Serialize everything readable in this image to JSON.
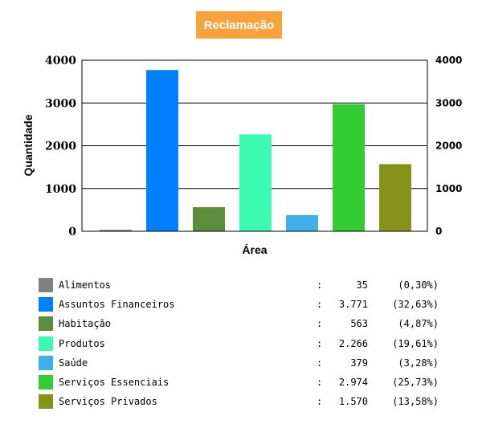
{
  "chart_data": {
    "type": "bar",
    "title": "Reclamação",
    "xlabel": "Área",
    "ylabel": "Quantidade",
    "ylim": [
      0,
      4000
    ],
    "yticks": [
      "0",
      "1000",
      "2000",
      "3000",
      "4000"
    ],
    "grid": true,
    "categories": [
      "Alimentos",
      "Assuntos Financeiros",
      "Habitação",
      "Produtos",
      "Saúde",
      "Serviços Essenciais",
      "Serviços Privados"
    ],
    "values": [
      35,
      3771,
      563,
      2266,
      379,
      2974,
      1570
    ],
    "colors": [
      "#808080",
      "#0080ff",
      "#5c8c3c",
      "#3cfab4",
      "#40b0e8",
      "#33cc33",
      "#859418"
    ]
  },
  "legend": {
    "separator": ":",
    "items": [
      {
        "name": "Alimentos",
        "count": "35",
        "pct": "(0,30%)"
      },
      {
        "name": "Assuntos Financeiros",
        "count": "3.771",
        "pct": "(32,63%)"
      },
      {
        "name": "Habitação",
        "count": "563",
        "pct": "(4,87%)"
      },
      {
        "name": "Produtos",
        "count": "2.266",
        "pct": "(19,61%)"
      },
      {
        "name": "Saúde",
        "count": "379",
        "pct": "(3,28%)"
      },
      {
        "name": "Serviços Essenciais",
        "count": "2.974",
        "pct": "(25,73%)"
      },
      {
        "name": "Serviços Privados",
        "count": "1.570",
        "pct": "(13,58%)"
      }
    ]
  }
}
